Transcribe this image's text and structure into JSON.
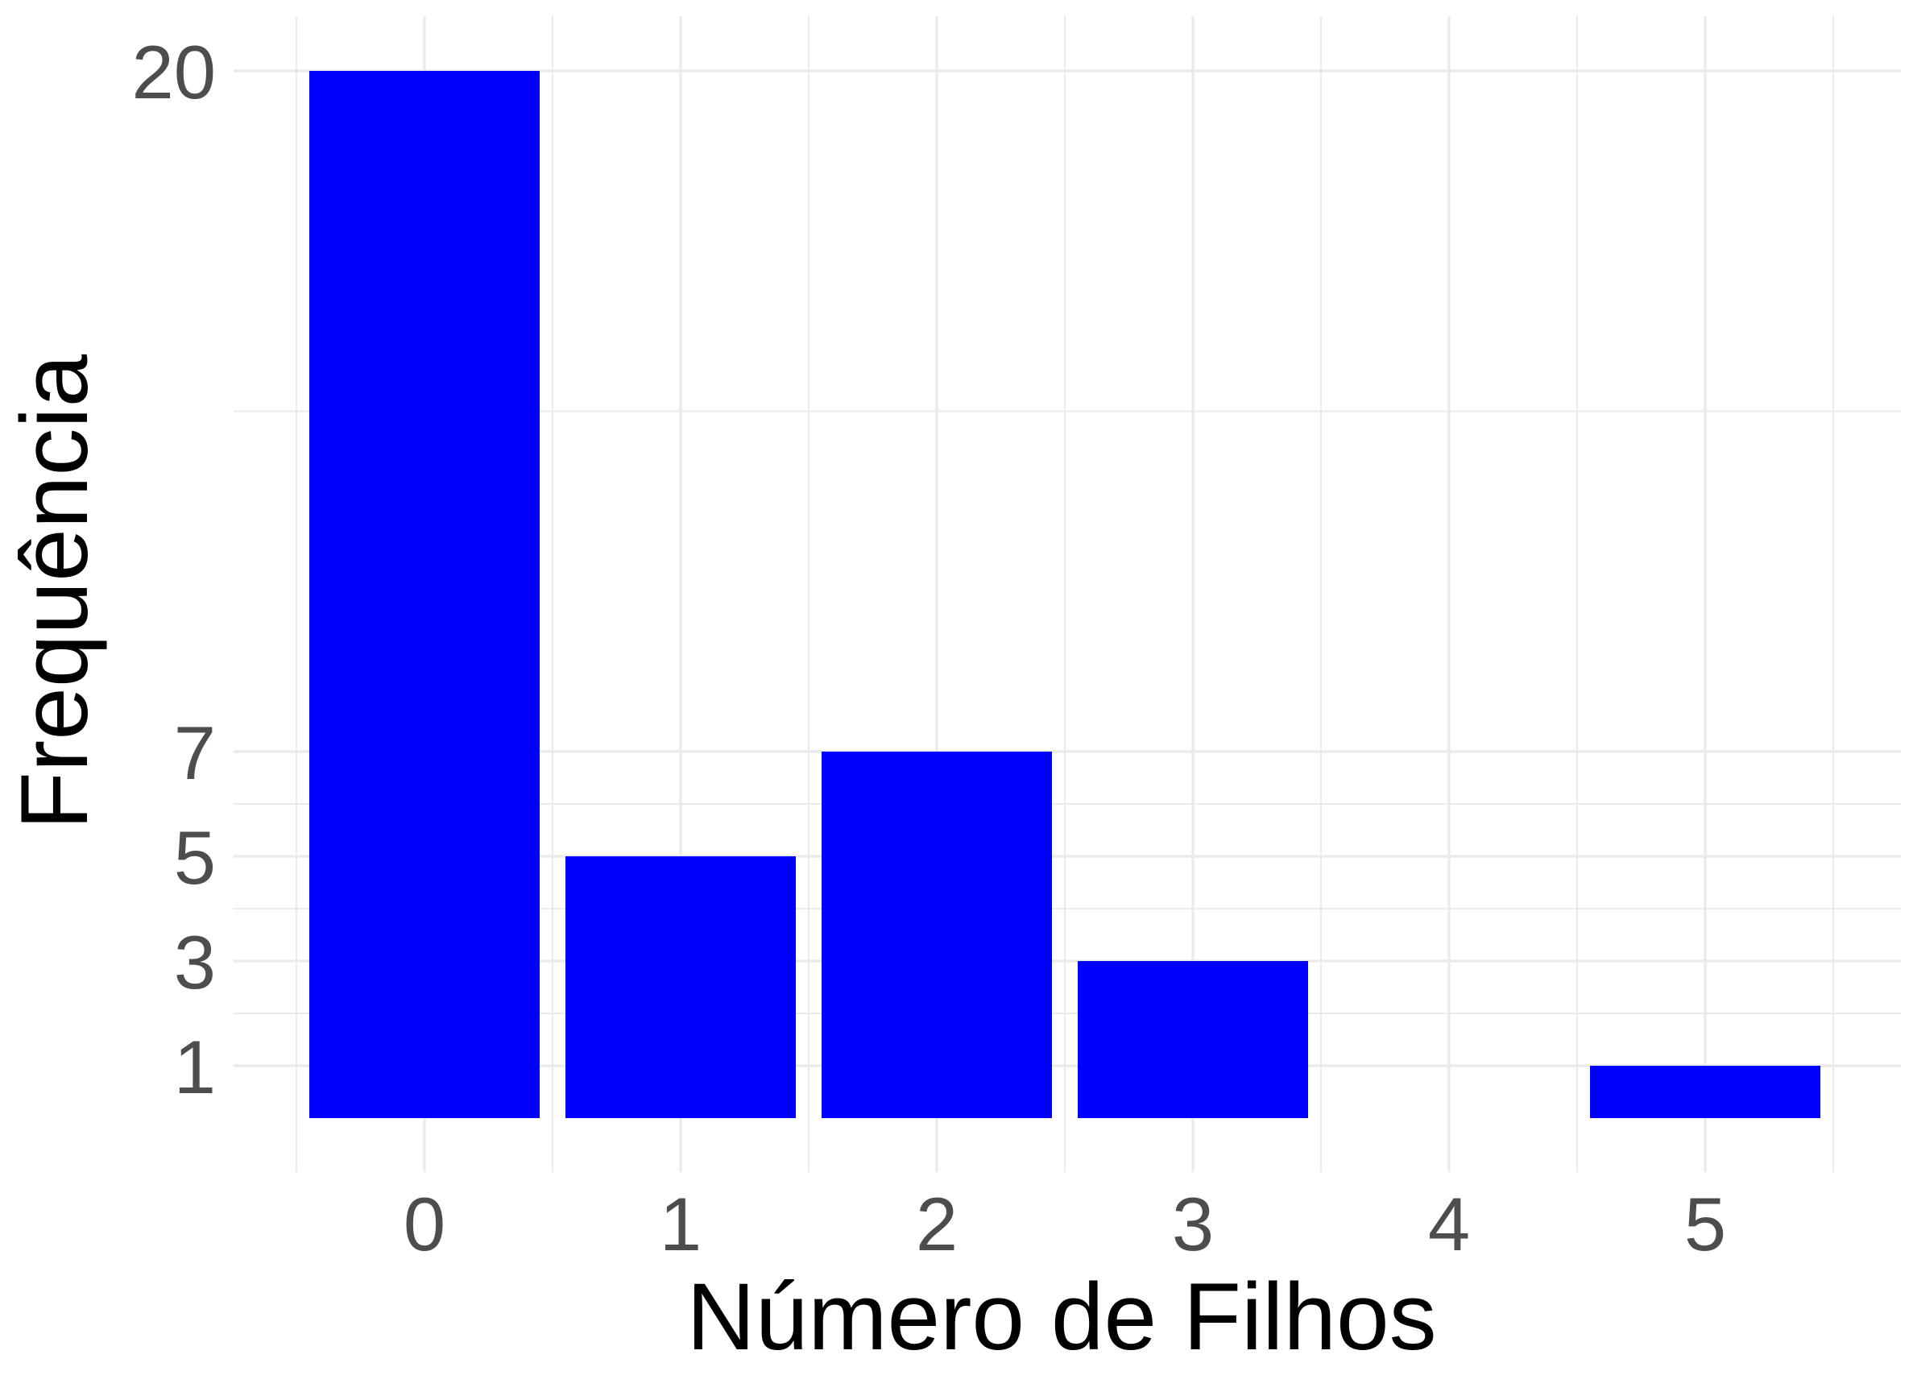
{
  "chart_data": {
    "type": "bar",
    "categories": [
      "0",
      "1",
      "2",
      "3",
      "4",
      "5"
    ],
    "values": [
      20,
      5,
      7,
      3,
      0,
      1
    ],
    "xlabel": "Número de Filhos",
    "ylabel": "Frequência",
    "yticks": [
      1,
      3,
      5,
      7,
      20
    ],
    "ylim": [
      0,
      21
    ],
    "grid": true,
    "legend": "none",
    "colors": {
      "bar": "#0000FF",
      "grid": "#EBEBEB",
      "tick_text": "#4D4D4D",
      "title_text": "#000000",
      "background": "#FFFFFF"
    }
  }
}
